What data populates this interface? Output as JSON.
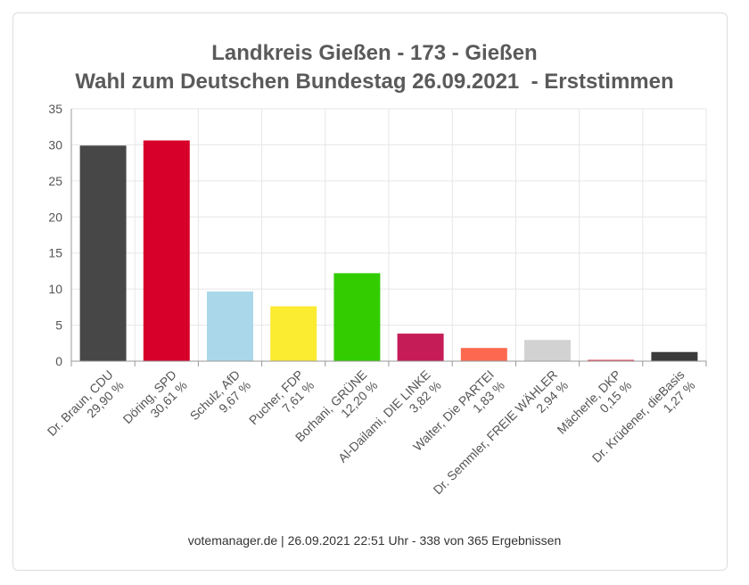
{
  "title_line1": "Landkreis Gießen - 173 - Gießen",
  "title_line2": "Wahl zum Deutschen Bundestag 26.09.2021  - Erststimmen",
  "footer": "votemanager.de | 26.09.2021 22:51 Uhr - 338 von 365 Ergebnissen",
  "chart_data": {
    "type": "bar",
    "title": "Landkreis Gießen - 173 - Gießen / Wahl zum Deutschen Bundestag 26.09.2021 - Erststimmen",
    "xlabel": "",
    "ylabel": "",
    "ylim": [
      0,
      35
    ],
    "yticks": [
      0,
      5,
      10,
      15,
      20,
      25,
      30,
      35
    ],
    "grid": true,
    "legend": "none",
    "categories": [
      "Dr. Braun, CDU",
      "Döring, SPD",
      "Schulz, AfD",
      "Pucher, FDP",
      "Borhani, GRÜNE",
      "Al-Dailami, DIE LINKE",
      "Walter, Die PARTEI",
      "Dr. Semmler, FREIE WÄHLER",
      "Mächerle, DKP",
      "Dr. Krüdener, dieBasis"
    ],
    "value_labels": [
      "29,90 %",
      "30,61 %",
      "9,67 %",
      "7,61 %",
      "12,20 %",
      "3,82 %",
      "1,83 %",
      "2,94 %",
      "0,15 %",
      "1,27 %"
    ],
    "values": [
      29.9,
      30.61,
      9.67,
      7.61,
      12.2,
      3.82,
      1.83,
      2.94,
      0.15,
      1.27
    ],
    "colors": [
      "#474747",
      "#d7002a",
      "#aad8ea",
      "#fbeb31",
      "#32cc00",
      "#c51c58",
      "#fd6950",
      "#d2d2d2",
      "#e4455a",
      "#3b3b3b"
    ]
  }
}
